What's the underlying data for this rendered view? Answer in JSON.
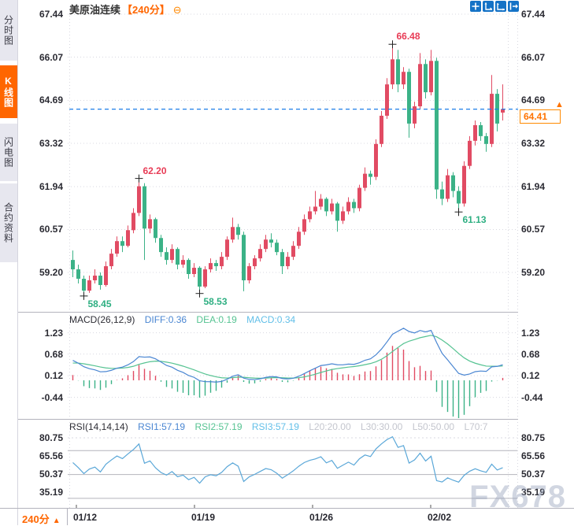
{
  "header": {
    "symbol": "美原油连续",
    "period": "【240分】",
    "collapse_icon": "⊖"
  },
  "sidebar": {
    "tabs": [
      {
        "label": "分时图",
        "active": false
      },
      {
        "label": "K线图",
        "active": true
      },
      {
        "label": "闪电图",
        "active": false
      },
      {
        "label": "合约资料",
        "active": false
      }
    ]
  },
  "toolbar": {
    "icons": [
      "crosshair",
      "fit-vertical-axis",
      "fit-horizontal-axis",
      "pan-right"
    ]
  },
  "price_tag": {
    "value": "64.41",
    "arrow": "▲"
  },
  "footer": {
    "period_badge": "240分",
    "badge_arrow": "▲"
  },
  "watermark": "FX678",
  "colors": {
    "up": "#e14b63",
    "down": "#3bb287",
    "accent": "#ff6600",
    "diff_line": "#4a86d2",
    "dea_line": "#56c392",
    "rsi_line": "#5aa7d8",
    "price_line": "#1d7fe8",
    "grid": "#d8d8e0",
    "level_line": "#b4b4bc"
  },
  "chart_data": {
    "type": "candlestick",
    "instrument": "美原油连续",
    "interval": "240分",
    "date_ticks": [
      "01/12",
      "01/19",
      "01/26",
      "02/02"
    ],
    "main_panel": {
      "y_ticks": [
        67.44,
        66.07,
        64.69,
        63.32,
        61.94,
        60.57,
        59.2
      ],
      "current_price": 64.41,
      "annotations": [
        {
          "text": "66.48",
          "price": 66.48,
          "candle_index": 58,
          "color": "#e83b55",
          "placement": "above"
        },
        {
          "text": "62.20",
          "price": 62.2,
          "candle_index": 12,
          "color": "#e83b55",
          "placement": "above"
        },
        {
          "text": "58.45",
          "price": 58.45,
          "candle_index": 2,
          "color": "#2eaf82",
          "placement": "below"
        },
        {
          "text": "58.53",
          "price": 58.53,
          "candle_index": 23,
          "color": "#2eaf82",
          "placement": "below"
        },
        {
          "text": "61.13",
          "price": 61.13,
          "candle_index": 70,
          "color": "#2eaf82",
          "placement": "below"
        }
      ],
      "ohlc": [
        [
          59.6,
          59.9,
          59.05,
          59.3
        ],
        [
          59.3,
          59.45,
          58.85,
          59.0
        ],
        [
          59.0,
          59.1,
          58.45,
          58.62
        ],
        [
          58.62,
          59.1,
          58.55,
          58.95
        ],
        [
          58.95,
          59.3,
          58.85,
          59.1
        ],
        [
          59.1,
          59.2,
          58.65,
          58.8
        ],
        [
          58.8,
          59.55,
          58.75,
          59.4
        ],
        [
          59.4,
          59.95,
          59.3,
          59.8
        ],
        [
          59.8,
          60.35,
          59.7,
          60.2
        ],
        [
          60.2,
          60.35,
          59.85,
          60.05
        ],
        [
          60.05,
          60.7,
          60.0,
          60.55
        ],
        [
          60.55,
          61.25,
          60.45,
          61.1
        ],
        [
          61.1,
          62.2,
          61.0,
          61.95
        ],
        [
          61.95,
          62.05,
          59.6,
          60.6
        ],
        [
          60.6,
          61.05,
          60.45,
          60.9
        ],
        [
          60.9,
          60.95,
          60.15,
          60.3
        ],
        [
          60.3,
          60.4,
          59.7,
          59.85
        ],
        [
          59.85,
          60.0,
          59.45,
          59.6
        ],
        [
          59.6,
          60.1,
          59.5,
          59.95
        ],
        [
          59.95,
          60.0,
          59.3,
          59.45
        ],
        [
          59.45,
          59.75,
          59.35,
          59.6
        ],
        [
          59.6,
          59.65,
          59.0,
          59.15
        ],
        [
          59.15,
          59.5,
          59.05,
          59.35
        ],
        [
          59.35,
          59.4,
          58.53,
          58.75
        ],
        [
          58.75,
          59.4,
          58.7,
          59.3
        ],
        [
          59.3,
          59.65,
          59.2,
          59.5
        ],
        [
          59.5,
          59.6,
          59.25,
          59.4
        ],
        [
          59.4,
          59.85,
          59.3,
          59.7
        ],
        [
          59.7,
          60.35,
          59.6,
          60.25
        ],
        [
          60.25,
          60.95,
          60.15,
          60.65
        ],
        [
          60.65,
          60.75,
          60.25,
          60.4
        ],
        [
          60.4,
          60.5,
          58.6,
          58.95
        ],
        [
          58.95,
          59.5,
          58.85,
          59.4
        ],
        [
          59.4,
          59.75,
          59.3,
          59.65
        ],
        [
          59.65,
          60.1,
          59.55,
          59.95
        ],
        [
          59.95,
          60.4,
          59.85,
          60.25
        ],
        [
          60.25,
          60.45,
          60.0,
          60.15
        ],
        [
          60.15,
          60.25,
          59.75,
          59.85
        ],
        [
          59.85,
          59.95,
          59.15,
          59.4
        ],
        [
          59.4,
          59.85,
          59.3,
          59.7
        ],
        [
          59.7,
          60.2,
          59.6,
          60.05
        ],
        [
          60.05,
          60.65,
          59.95,
          60.5
        ],
        [
          60.5,
          61.05,
          60.4,
          60.9
        ],
        [
          60.9,
          61.3,
          60.8,
          61.15
        ],
        [
          61.15,
          61.8,
          61.05,
          61.3
        ],
        [
          61.3,
          61.7,
          61.2,
          61.55
        ],
        [
          61.55,
          61.6,
          61.0,
          61.15
        ],
        [
          61.15,
          61.55,
          61.05,
          61.4
        ],
        [
          61.4,
          61.45,
          60.5,
          60.85
        ],
        [
          60.85,
          61.3,
          60.75,
          61.15
        ],
        [
          61.15,
          61.6,
          61.05,
          61.45
        ],
        [
          61.45,
          61.55,
          61.1,
          61.25
        ],
        [
          61.25,
          62.0,
          61.15,
          61.9
        ],
        [
          61.9,
          62.55,
          61.8,
          62.35
        ],
        [
          62.35,
          62.45,
          62.0,
          62.25
        ],
        [
          62.25,
          63.45,
          62.15,
          63.3
        ],
        [
          63.3,
          64.35,
          63.2,
          64.2
        ],
        [
          64.2,
          65.4,
          64.1,
          65.2
        ],
        [
          65.2,
          66.48,
          65.05,
          66.0
        ],
        [
          66.0,
          66.3,
          64.95,
          65.2
        ],
        [
          65.2,
          65.75,
          65.05,
          65.6
        ],
        [
          65.6,
          65.7,
          63.5,
          63.95
        ],
        [
          63.95,
          64.65,
          63.8,
          64.5
        ],
        [
          64.5,
          66.2,
          64.4,
          65.85
        ],
        [
          65.85,
          66.0,
          64.75,
          64.95
        ],
        [
          64.95,
          66.3,
          64.85,
          65.95
        ],
        [
          65.95,
          66.05,
          61.55,
          61.85
        ],
        [
          61.85,
          62.1,
          61.35,
          61.55
        ],
        [
          61.55,
          62.5,
          61.45,
          62.3
        ],
        [
          62.3,
          62.4,
          61.6,
          61.8
        ],
        [
          61.8,
          61.95,
          61.13,
          61.4
        ],
        [
          61.4,
          62.75,
          61.3,
          62.6
        ],
        [
          62.6,
          63.55,
          62.5,
          63.4
        ],
        [
          63.4,
          64.05,
          63.25,
          63.9
        ],
        [
          63.9,
          64.0,
          63.4,
          63.55
        ],
        [
          63.55,
          63.65,
          63.05,
          63.3
        ],
        [
          63.3,
          65.5,
          63.2,
          64.9
        ],
        [
          64.9,
          65.05,
          63.7,
          63.95
        ],
        [
          64.3,
          65.2,
          64.05,
          64.41
        ]
      ]
    },
    "macd_panel": {
      "label": "MACD(26,12,9)",
      "legend": [
        {
          "text": "DIFF:0.36",
          "color": "#4a86d2"
        },
        {
          "text": "DEA:0.19",
          "color": "#56c392"
        },
        {
          "text": "MACD:0.34",
          "color": "#62bfe8"
        }
      ],
      "y_ticks": [
        1.23,
        0.68,
        0.12,
        -0.44
      ],
      "params": {
        "slow": 26,
        "fast": 12,
        "signal": 9
      }
    },
    "rsi_panel": {
      "label": "RSI(14,14,14)",
      "legend": [
        {
          "text": "RSI1:57.19",
          "color": "#4a86d2"
        },
        {
          "text": "RSI2:57.19",
          "color": "#56c392"
        },
        {
          "text": "RSI3:57.19",
          "color": "#62bfe8"
        },
        {
          "text": "L20:20.00",
          "color": "#c4c6ce"
        },
        {
          "text": "L30:30.00",
          "color": "#c4c6ce"
        },
        {
          "text": "L50:50.00",
          "color": "#c4c6ce"
        },
        {
          "text": "L70:7",
          "color": "#c4c6ce"
        }
      ],
      "y_ticks": [
        80.75,
        65.56,
        50.37,
        35.19
      ],
      "levels": [
        70,
        50,
        30,
        20
      ],
      "period": 14
    }
  }
}
